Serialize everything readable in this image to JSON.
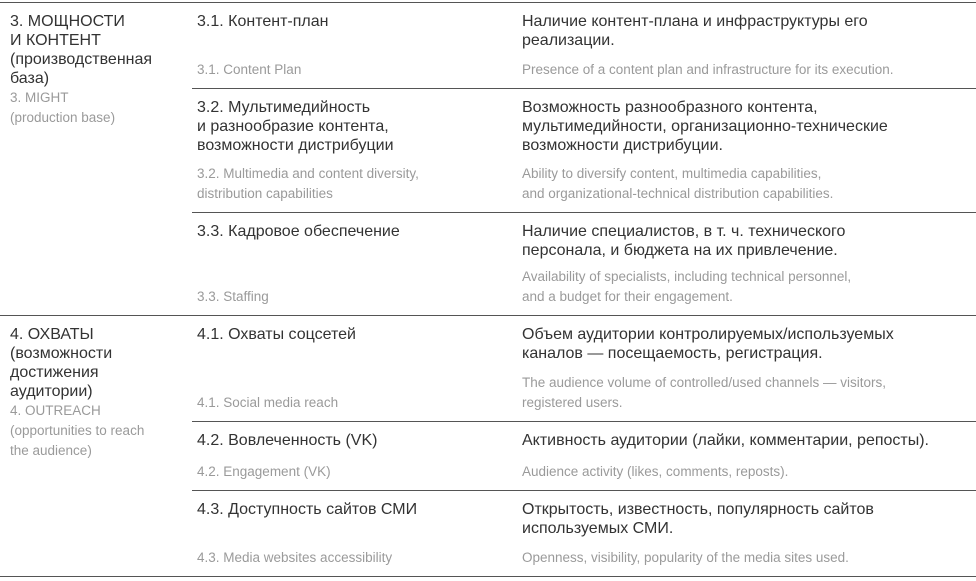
{
  "sections": [
    {
      "ru": "3. МОЩНОСТИ\nИ КОНТЕНТ\n(производственная\nбаза)",
      "en": "3. MIGHT\n(production base)",
      "rows": [
        {
          "name_ru": "3.1. Контент-план",
          "name_en": "3.1. Content Plan",
          "desc_ru": "Наличие контент-плана и инфраструктуры его\nреализации.",
          "desc_en": "Presence of a content plan and infrastructure for its execution."
        },
        {
          "name_ru": "3.2. Мультимедийность\nи разнообразие контента,\nвозможности дистрибуции",
          "name_en": "3.2. Multimedia and content diversity,\ndistribution capabilities",
          "desc_ru": "Возможность разнообразного контента,\nмультимедийности, организационно-технические\nвозможности дистрибуции.",
          "desc_en": "Ability to diversify content, multimedia capabilities,\nand organizational-technical distribution capabilities."
        },
        {
          "name_ru": "3.3. Кадровое обеспечение",
          "name_en": "3.3. Staffing",
          "desc_ru": "Наличие специалистов, в т. ч. технического\nперсонала, и бюджета на их привлечение.",
          "desc_en": "Availability of specialists, including technical personnel,\nand a budget for their engagement."
        }
      ]
    },
    {
      "ru": "4. ОХВАТЫ\n(возможности\nдостижения\nаудитории)",
      "en": "4. OUTREACH\n(opportunities to reach\nthe audience)",
      "rows": [
        {
          "name_ru": "4.1. Охваты соцсетей",
          "name_en": "4.1. Social media reach",
          "desc_ru": "Объем аудитории контролируемых/используемых\nканалов — посещаемость, регистрация.",
          "desc_en": "The audience volume of controlled/used channels — visitors,\nregistered users."
        },
        {
          "name_ru": "4.2. Вовлеченность (VK)",
          "name_en": "4.2. Engagement (VK)",
          "desc_ru": "Активность аудитории (лайки, комментарии, репосты).",
          "desc_en": "Audience activity (likes, comments, reposts)."
        },
        {
          "name_ru": "4.3. Доступность сайтов СМИ",
          "name_en": "4.3. Media websites accessibility",
          "desc_ru": "Открытость, известность, популярность сайтов\nиспользуемых СМИ.",
          "desc_en": "Openness, visibility, popularity of the media sites used."
        }
      ]
    }
  ]
}
